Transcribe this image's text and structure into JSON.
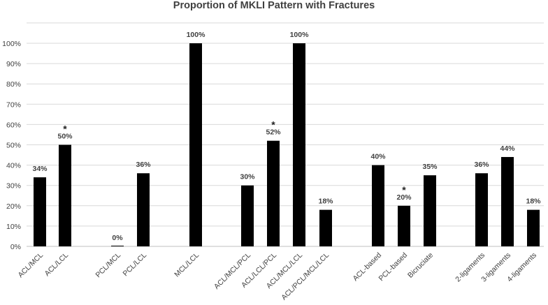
{
  "chart_data": {
    "type": "bar",
    "title": "Proportion of MKLI Pattern with Fractures",
    "xlabel": "",
    "ylabel": "",
    "ylim": [
      0,
      100
    ],
    "y_ticks": [
      "0%",
      "10%",
      "20%",
      "30%",
      "40%",
      "50%",
      "60%",
      "70%",
      "80%",
      "90%",
      "100%"
    ],
    "grid": true,
    "bar_color": "#000000",
    "categories": [
      "ACL/MCL",
      "ACL/LCL",
      "PCL/MCL",
      "PCL/LCL",
      "MCL/LCL",
      "ACL/MCL/PCL",
      "ACL/LCL/PCL",
      "ACL/MCL/LCL",
      "ACL/PCL/MCL/LCL",
      "ACL-based",
      "PCL-based",
      "Bicruciate",
      "2-ligaments",
      "3-ligaments",
      "4-ligaments"
    ],
    "values": [
      34,
      50,
      0,
      36,
      100,
      30,
      52,
      100,
      18,
      40,
      20,
      35,
      36,
      44,
      18
    ],
    "data_labels": [
      "34%",
      "50%",
      "0%",
      "36%",
      "100%",
      "30%",
      "52%",
      "100%",
      "18%",
      "40%",
      "20%",
      "35%",
      "36%",
      "44%",
      "18%"
    ],
    "significance": [
      "",
      "*",
      "",
      "",
      "",
      "",
      "*",
      "",
      "",
      "",
      "*",
      "",
      "",
      "",
      ""
    ]
  }
}
